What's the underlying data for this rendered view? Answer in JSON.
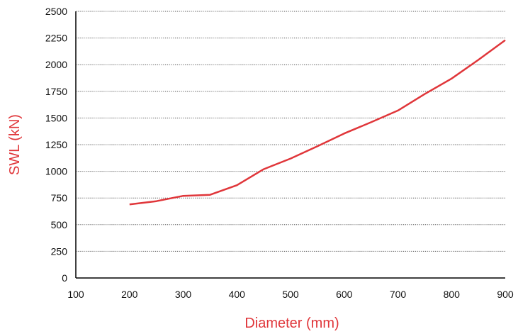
{
  "chart_data": {
    "type": "line",
    "title": "",
    "xlabel": "Diameter (mm)",
    "ylabel": "SWL (kN)",
    "xlim": [
      100,
      900
    ],
    "ylim": [
      0,
      2500
    ],
    "x_ticks": [
      "100",
      "200",
      "300",
      "400",
      "500",
      "600",
      "700",
      "800",
      "900"
    ],
    "y_ticks": [
      "0",
      "250",
      "500",
      "750",
      "1000",
      "1250",
      "1500",
      "1750",
      "2000",
      "2250",
      "2500"
    ],
    "grid": "horizontal dotted",
    "series": [
      {
        "x": [
          200,
          250,
          300,
          350,
          400,
          450,
          500,
          550,
          600,
          650,
          700,
          750,
          800,
          850,
          900
        ],
        "y": [
          690,
          720,
          770,
          780,
          870,
          1020,
          1120,
          1235,
          1355,
          1460,
          1570,
          1725,
          1870,
          2045,
          2230
        ]
      }
    ],
    "colors": {
      "line": "#e0363a",
      "axis_title": "#e0363a",
      "grid": "#555555",
      "axis": "#000000"
    }
  }
}
